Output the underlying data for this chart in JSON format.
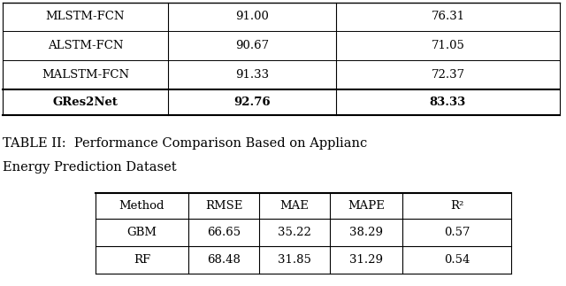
{
  "table1": {
    "rows": [
      [
        "MLSTM-FCN",
        "91.00",
        "76.31"
      ],
      [
        "ALSTM-FCN",
        "90.67",
        "71.05"
      ],
      [
        "MALSTM-FCN",
        "91.33",
        "72.37"
      ],
      [
        "GRes2Net",
        "92.76",
        "83.33"
      ]
    ]
  },
  "caption_line1": "TABLE II:  Performance Comparison Based on Applianc",
  "caption_line2": "Energy Prediction Dataset",
  "table2": {
    "headers": [
      "Method",
      "RMSE",
      "MAE",
      "MAPE",
      "R²"
    ],
    "rows": [
      [
        "GBM",
        "66.65",
        "35.22",
        "38.29",
        "0.57"
      ],
      [
        "RF",
        "68.48",
        "31.85",
        "31.29",
        "0.54"
      ]
    ]
  },
  "bg_color": "#ffffff",
  "text_color": "#000000",
  "line_color": "#000000",
  "t1_font_size": 9.5,
  "caption_font_size": 10.5,
  "t2_font_size": 9.5
}
